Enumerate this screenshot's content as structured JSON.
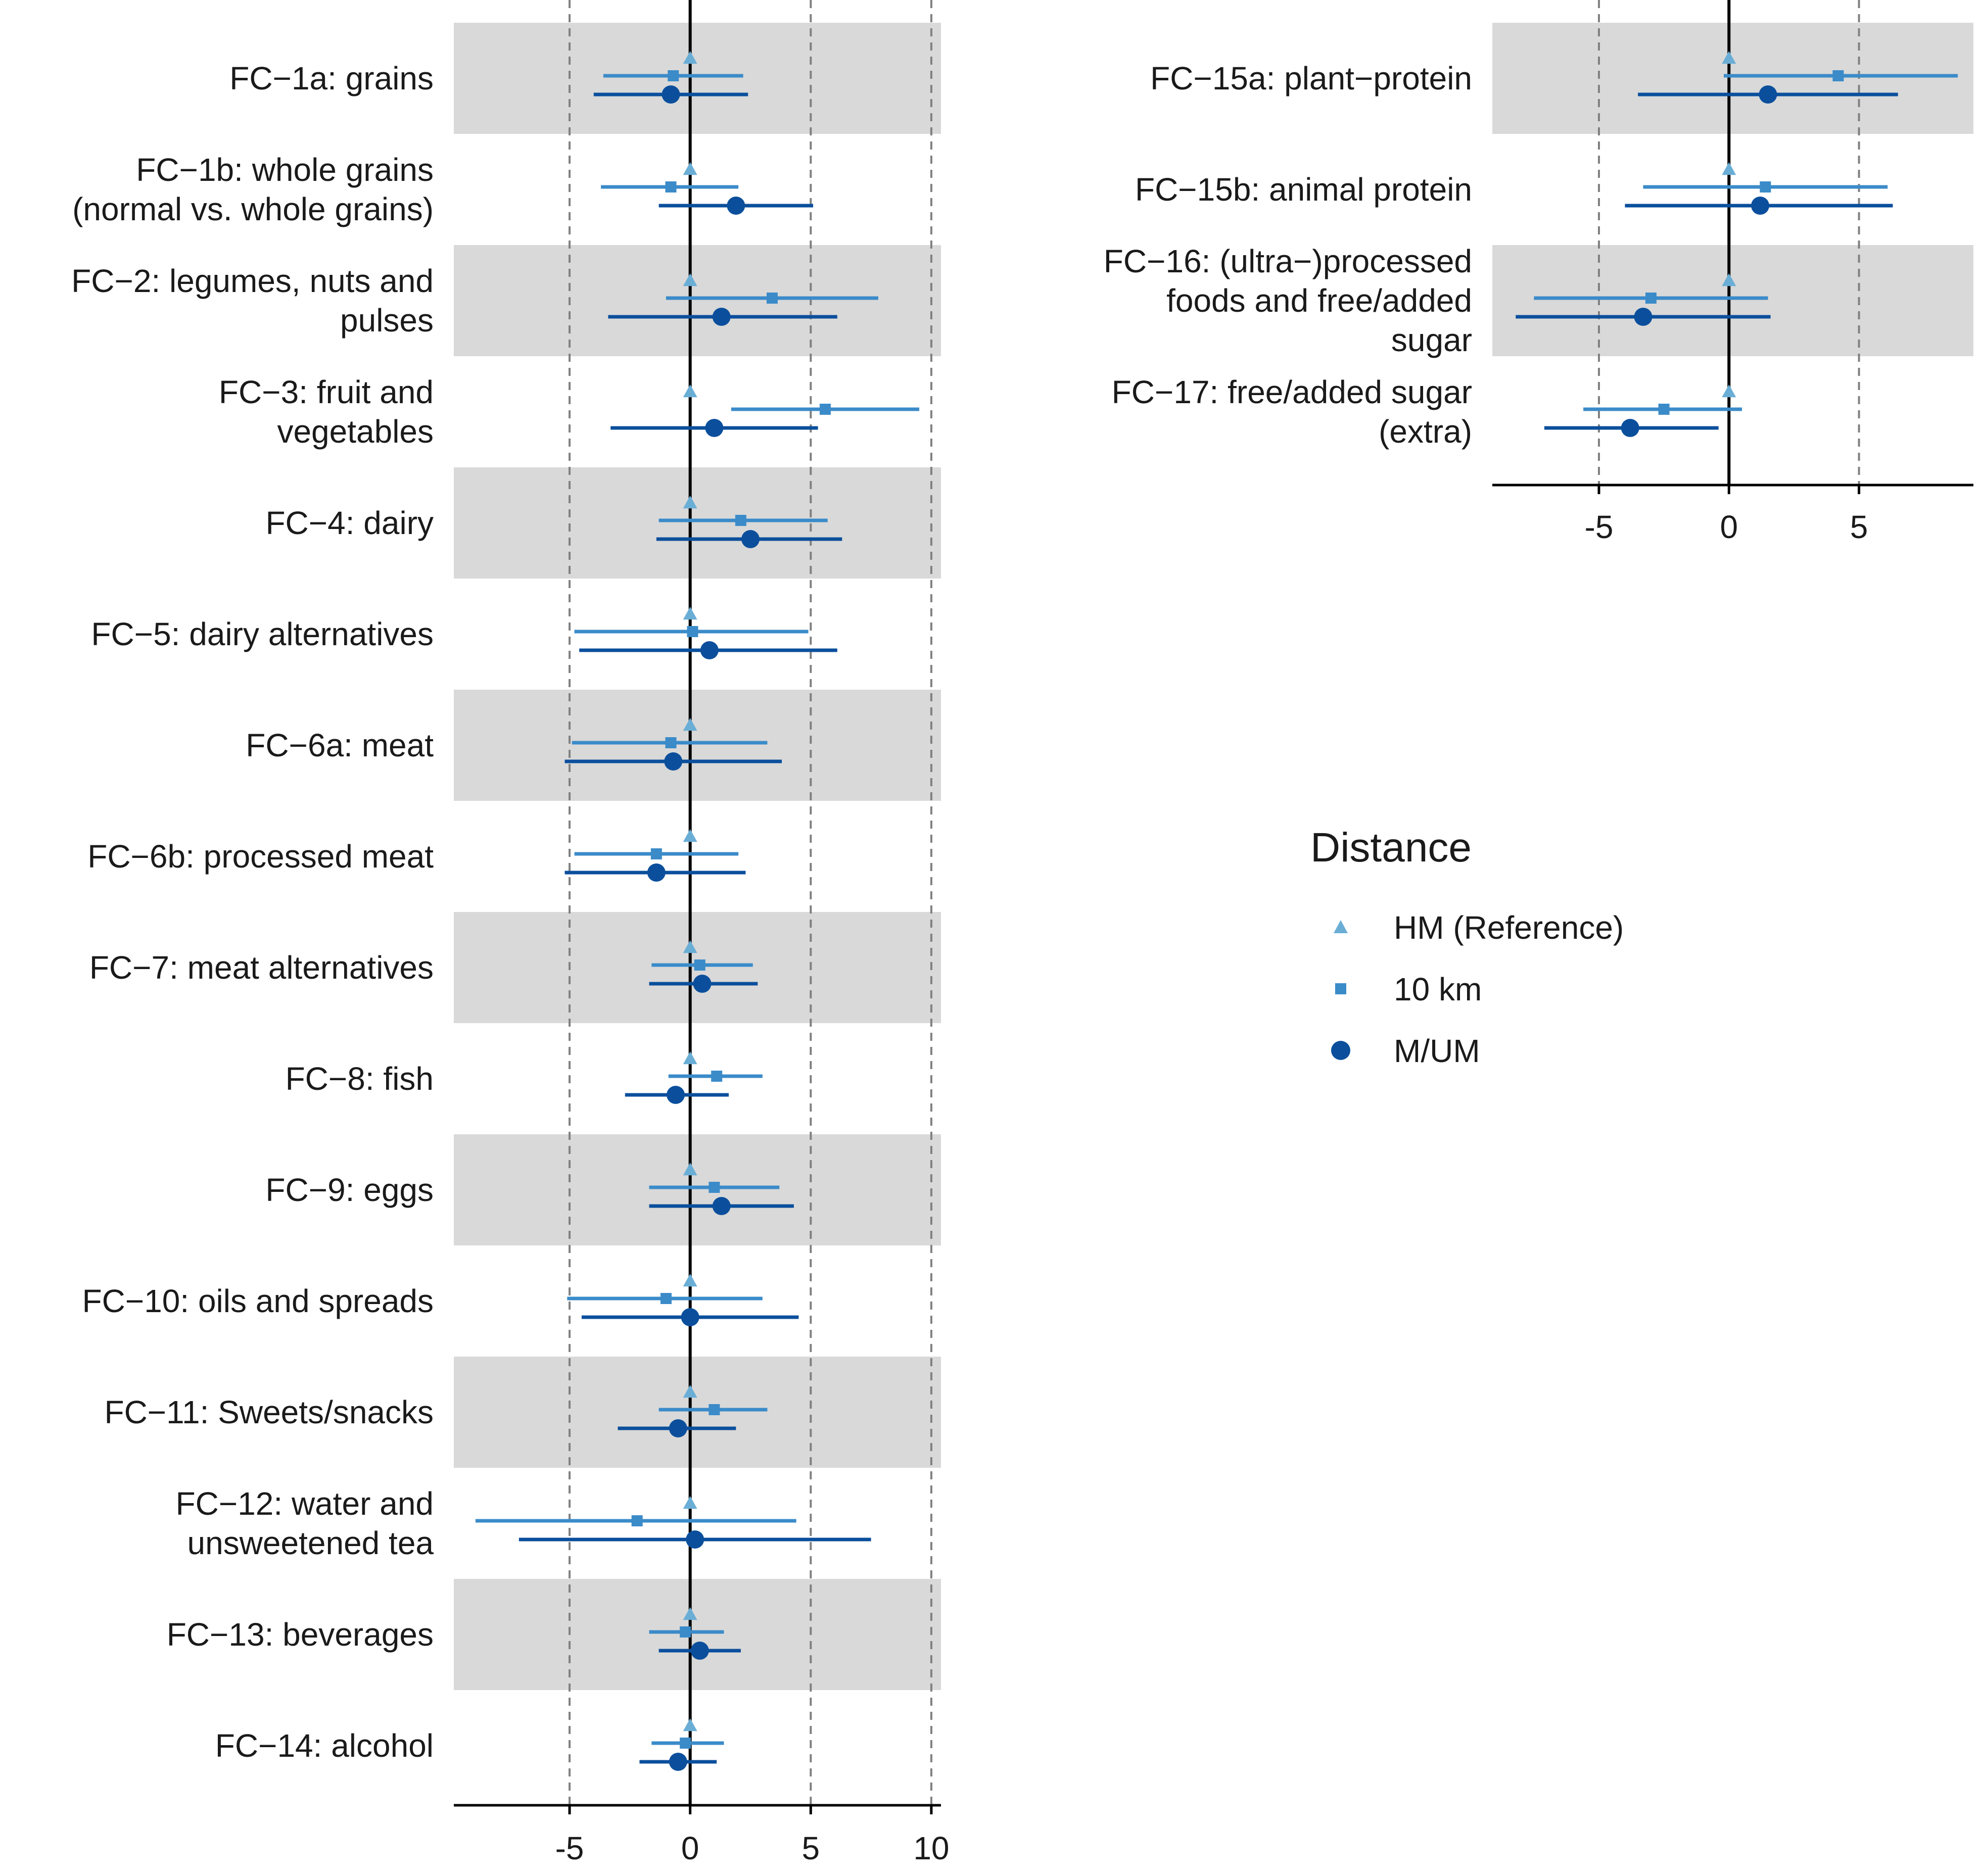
{
  "chart_data": [
    {
      "type": "forest",
      "panel": "left",
      "xlim": [
        -9.8,
        10.4
      ],
      "xticks": [
        -5,
        0,
        5,
        10
      ],
      "xtick_labels": [
        "-5",
        "0",
        "5",
        "10"
      ],
      "reference_lines": [
        -5,
        0,
        5,
        10
      ],
      "rows": [
        {
          "label": [
            "FC−1a: grains"
          ],
          "shaded": true,
          "ref": 0,
          "km10": {
            "est": -0.7,
            "lo": -3.6,
            "hi": 2.2
          },
          "mum": {
            "est": -0.8,
            "lo": -4.0,
            "hi": 2.4
          }
        },
        {
          "label": [
            "FC−1b: whole grains",
            "(normal vs. whole grains)"
          ],
          "shaded": false,
          "ref": 0,
          "km10": {
            "est": -0.8,
            "lo": -3.7,
            "hi": 2.0
          },
          "mum": {
            "est": 1.9,
            "lo": -1.3,
            "hi": 5.1
          }
        },
        {
          "label": [
            "FC−2: legumes, nuts and",
            "pulses"
          ],
          "shaded": true,
          "ref": 0,
          "km10": {
            "est": 3.4,
            "lo": -1.0,
            "hi": 7.8
          },
          "mum": {
            "est": 1.3,
            "lo": -3.4,
            "hi": 6.1
          }
        },
        {
          "label": [
            "FC−3: fruit and",
            "vegetables"
          ],
          "shaded": false,
          "ref": 0,
          "km10": {
            "est": 5.6,
            "lo": 1.7,
            "hi": 9.5
          },
          "mum": {
            "est": 1.0,
            "lo": -3.3,
            "hi": 5.3
          }
        },
        {
          "label": [
            "FC−4: dairy"
          ],
          "shaded": true,
          "ref": 0,
          "km10": {
            "est": 2.1,
            "lo": -1.3,
            "hi": 5.7
          },
          "mum": {
            "est": 2.5,
            "lo": -1.4,
            "hi": 6.3
          }
        },
        {
          "label": [
            "FC−5: dairy alternatives"
          ],
          "shaded": false,
          "ref": 0,
          "km10": {
            "est": 0.1,
            "lo": -4.8,
            "hi": 4.9
          },
          "mum": {
            "est": 0.8,
            "lo": -4.6,
            "hi": 6.1
          }
        },
        {
          "label": [
            "FC−6a: meat"
          ],
          "shaded": true,
          "ref": 0,
          "km10": {
            "est": -0.8,
            "lo": -4.9,
            "hi": 3.2
          },
          "mum": {
            "est": -0.7,
            "lo": -5.2,
            "hi": 3.8
          }
        },
        {
          "label": [
            "FC−6b: processed meat"
          ],
          "shaded": false,
          "ref": 0,
          "km10": {
            "est": -1.4,
            "lo": -4.8,
            "hi": 2.0
          },
          "mum": {
            "est": -1.4,
            "lo": -5.2,
            "hi": 2.3
          }
        },
        {
          "label": [
            "FC−7: meat alternatives"
          ],
          "shaded": true,
          "ref": 0,
          "km10": {
            "est": 0.4,
            "lo": -1.6,
            "hi": 2.6
          },
          "mum": {
            "est": 0.5,
            "lo": -1.7,
            "hi": 2.8
          }
        },
        {
          "label": [
            "FC−8: fish"
          ],
          "shaded": false,
          "ref": 0,
          "km10": {
            "est": 1.1,
            "lo": -0.9,
            "hi": 3.0
          },
          "mum": {
            "est": -0.6,
            "lo": -2.7,
            "hi": 1.6
          }
        },
        {
          "label": [
            "FC−9: eggs"
          ],
          "shaded": true,
          "ref": 0,
          "km10": {
            "est": 1.0,
            "lo": -1.7,
            "hi": 3.7
          },
          "mum": {
            "est": 1.3,
            "lo": -1.7,
            "hi": 4.3
          }
        },
        {
          "label": [
            "FC−10: oils and spreads"
          ],
          "shaded": false,
          "ref": 0,
          "km10": {
            "est": -1.0,
            "lo": -5.1,
            "hi": 3.0
          },
          "mum": {
            "est": 0.0,
            "lo": -4.5,
            "hi": 4.5
          }
        },
        {
          "label": [
            "FC−11: Sweets/snacks"
          ],
          "shaded": true,
          "ref": 0,
          "km10": {
            "est": 1.0,
            "lo": -1.3,
            "hi": 3.2
          },
          "mum": {
            "est": -0.5,
            "lo": -3.0,
            "hi": 1.9
          }
        },
        {
          "label": [
            "FC−12: water and",
            "unsweetened tea"
          ],
          "shaded": false,
          "ref": 0,
          "km10": {
            "est": -2.2,
            "lo": -8.9,
            "hi": 4.4
          },
          "mum": {
            "est": 0.2,
            "lo": -7.1,
            "hi": 7.5
          }
        },
        {
          "label": [
            "FC−13: beverages"
          ],
          "shaded": true,
          "ref": 0,
          "km10": {
            "est": -0.2,
            "lo": -1.7,
            "hi": 1.4
          },
          "mum": {
            "est": 0.4,
            "lo": -1.3,
            "hi": 2.1
          }
        },
        {
          "label": [
            "FC−14: alcohol"
          ],
          "shaded": false,
          "ref": 0,
          "km10": {
            "est": -0.2,
            "lo": -1.6,
            "hi": 1.4
          },
          "mum": {
            "est": -0.5,
            "lo": -2.1,
            "hi": 1.1
          }
        }
      ]
    },
    {
      "type": "forest",
      "panel": "right",
      "xlim": [
        -9.1,
        9.4
      ],
      "xticks": [
        -5,
        0,
        5
      ],
      "xtick_labels": [
        "-5",
        "0",
        "5"
      ],
      "reference_lines": [
        -5,
        0,
        5
      ],
      "rows": [
        {
          "label": [
            "FC−15a: plant−protein"
          ],
          "shaded": true,
          "ref": 0,
          "km10": {
            "est": 4.2,
            "lo": -0.2,
            "hi": 8.8
          },
          "mum": {
            "est": 1.5,
            "lo": -3.5,
            "hi": 6.5
          }
        },
        {
          "label": [
            "FC−15b: animal protein"
          ],
          "shaded": false,
          "ref": 0,
          "km10": {
            "est": 1.4,
            "lo": -3.3,
            "hi": 6.1
          },
          "mum": {
            "est": 1.2,
            "lo": -4.0,
            "hi": 6.3
          }
        },
        {
          "label": [
            "FC−16: (ultra−)processed",
            "foods and free/added",
            "sugar"
          ],
          "shaded": true,
          "ref": 0,
          "km10": {
            "est": -3.0,
            "lo": -7.5,
            "hi": 1.5
          },
          "mum": {
            "est": -3.3,
            "lo": -8.2,
            "hi": 1.6
          }
        },
        {
          "label": [
            "FC−17: free/added sugar",
            "(extra)"
          ],
          "shaded": false,
          "ref": 0,
          "km10": {
            "est": -2.5,
            "lo": -5.6,
            "hi": 0.5
          },
          "mum": {
            "est": -3.8,
            "lo": -7.1,
            "hi": -0.4
          }
        }
      ]
    }
  ],
  "legend": {
    "title": "Distance",
    "placement": "right-middle",
    "items": [
      {
        "label": "HM (Reference)",
        "shape": "triangle",
        "color": "#6aaed6"
      },
      {
        "label": "10 km",
        "shape": "square",
        "color": "#3b8bc9"
      },
      {
        "label": "M/UM",
        "shape": "circle",
        "color": "#0b4f9c"
      }
    ]
  },
  "colors": {
    "ref": "#6aaed6",
    "km10": "#3b8bc9",
    "mum": "#0b4f9c",
    "band": "#d9d9d9",
    "axis": "#000000",
    "gridline": "#808080"
  }
}
